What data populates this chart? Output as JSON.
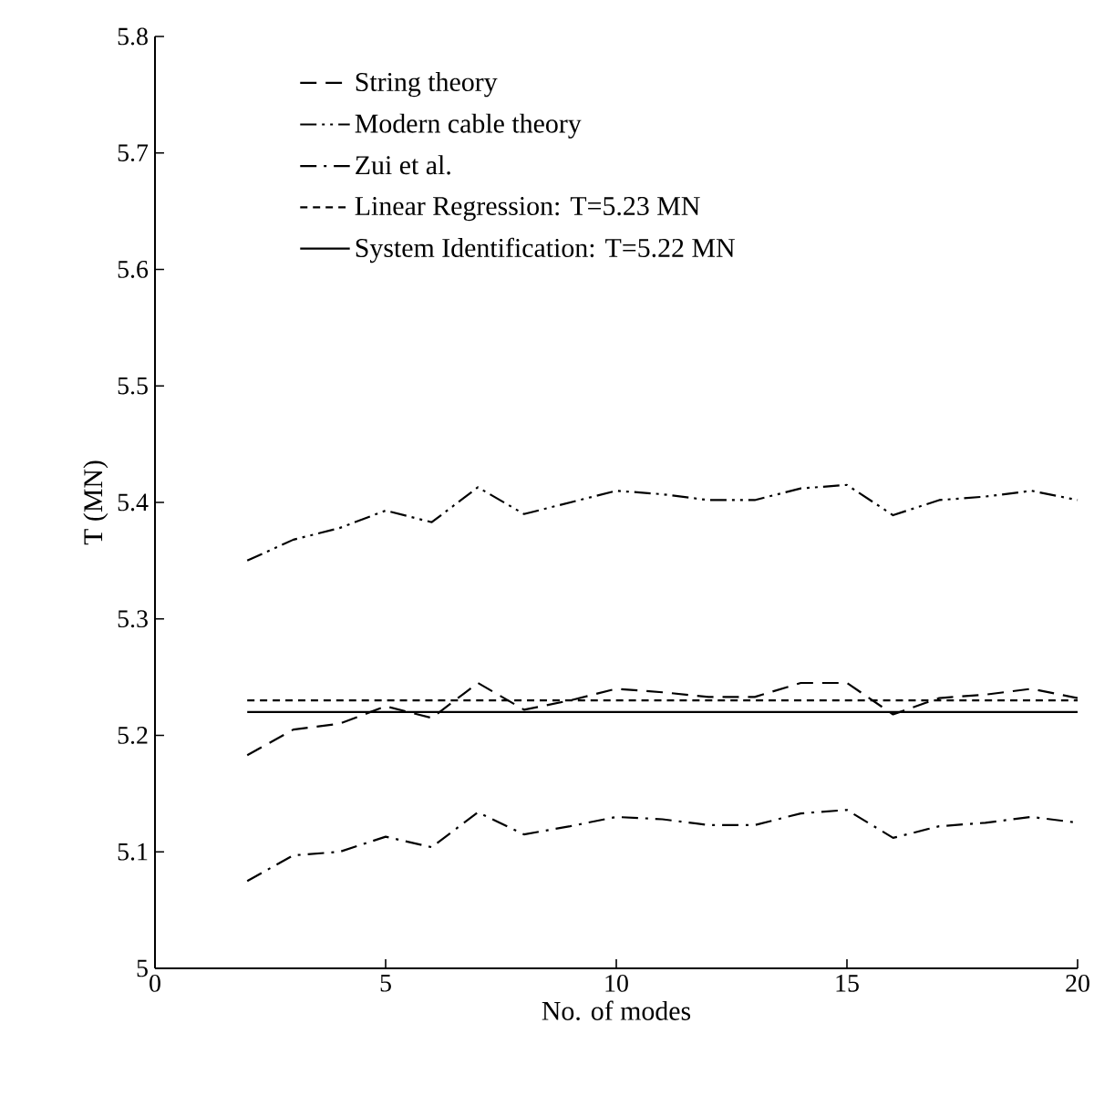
{
  "chart_data": {
    "type": "line",
    "xlabel": "No. of modes",
    "ylabel": "T (MN)",
    "xlim": [
      0,
      20
    ],
    "ylim": [
      5,
      5.8
    ],
    "xticks": [
      0,
      5,
      10,
      15,
      20
    ],
    "yticks": [
      5,
      5.1,
      5.2,
      5.3,
      5.4,
      5.5,
      5.6,
      5.7,
      5.8
    ],
    "legend": "top left",
    "grid": false,
    "marker": "none",
    "x": [
      2,
      3,
      4,
      5,
      6,
      7,
      8,
      9,
      10,
      11,
      12,
      13,
      14,
      15,
      16,
      17,
      18,
      19,
      20
    ],
    "series": [
      {
        "name": "String theory",
        "color": "#000000",
        "line_style": "dashed",
        "values": [
          5.183,
          5.205,
          5.21,
          5.225,
          5.215,
          5.245,
          5.222,
          5.23,
          5.24,
          5.237,
          5.233,
          5.233,
          5.245,
          5.245,
          5.218,
          5.232,
          5.235,
          5.24,
          5.232
        ]
      },
      {
        "name": "Modern cable theory",
        "color": "#000000",
        "line_style": "dashdotdotted",
        "values": [
          5.35,
          5.368,
          5.378,
          5.393,
          5.383,
          5.413,
          5.39,
          5.4,
          5.41,
          5.407,
          5.402,
          5.402,
          5.412,
          5.415,
          5.389,
          5.402,
          5.405,
          5.41,
          5.402
        ]
      },
      {
        "name": "Zui et al.",
        "color": "#000000",
        "line_style": "dashdotted",
        "values": [
          5.075,
          5.097,
          5.1,
          5.113,
          5.104,
          5.134,
          5.115,
          5.122,
          5.13,
          5.128,
          5.123,
          5.123,
          5.133,
          5.136,
          5.112,
          5.122,
          5.125,
          5.13,
          5.125
        ]
      }
    ],
    "ref_lines": [
      {
        "axis": "y",
        "value": 5.23,
        "label": "Linear Regression: T=5.23 MN",
        "color": "#000000",
        "line_style": "dotted"
      },
      {
        "axis": "y",
        "value": 5.22,
        "label": "System Identification: T=5.22 MN",
        "color": "#000000",
        "line_style": "solid"
      }
    ]
  }
}
